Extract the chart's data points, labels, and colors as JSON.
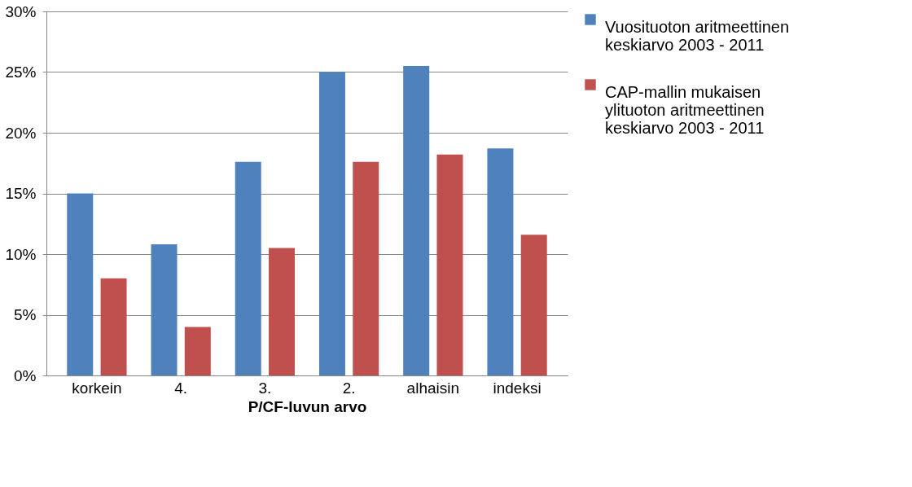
{
  "chart_data": {
    "type": "bar",
    "xlabel": "P/CF-luvun arvo",
    "categories": [
      "korkein",
      "4.",
      "3.",
      "2.",
      "alhaisin",
      "indeksi"
    ],
    "series": [
      {
        "name": "Vuosituoton aritmeettinen keskiarvo 2003 - 2011",
        "color": "#4f81bd",
        "values": [
          15.0,
          10.8,
          17.6,
          25.0,
          25.5,
          18.7
        ]
      },
      {
        "name": "CAP-mallin mukaisen ylituoton aritmeettinen keskiarvo 2003 - 2011",
        "color": "#c0504d",
        "values": [
          8.0,
          4.0,
          10.5,
          17.6,
          18.2,
          11.6
        ]
      }
    ],
    "ylim": [
      0,
      30
    ],
    "yticks": [
      {
        "value": 0,
        "label": "0%"
      },
      {
        "value": 5,
        "label": "5%"
      },
      {
        "value": 10,
        "label": "10%"
      },
      {
        "value": 15,
        "label": "15%"
      },
      {
        "value": 20,
        "label": "20%"
      },
      {
        "value": 25,
        "label": "25%"
      },
      {
        "value": 30,
        "label": "30%"
      }
    ],
    "grid": "y",
    "legend": "right"
  }
}
